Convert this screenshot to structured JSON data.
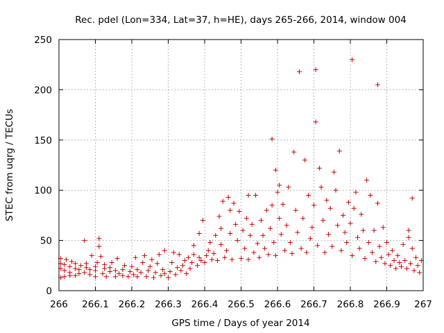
{
  "chart_data": {
    "type": "scatter",
    "title": "Rec. pdel (Lon=334, Lat=37, h=HE), days 265-266, 2014, window 004",
    "xlabel": "GPS time / Days of year 2014",
    "ylabel": "STEC from uqrg / TECUs",
    "xlim": [
      266,
      267
    ],
    "ylim": [
      0,
      250
    ],
    "xticks": [
      "266",
      "266.1",
      "266.2",
      "266.3",
      "266.4",
      "266.5",
      "266.6",
      "266.7",
      "266.8",
      "266.9",
      "267"
    ],
    "yticks": [
      "0",
      "50",
      "100",
      "150",
      "200",
      "250"
    ],
    "grid": true,
    "marker": "+",
    "series": [
      {
        "name": "STEC",
        "color": "#cc0000",
        "points": [
          [
            266.005,
            13
          ],
          [
            266.005,
            22
          ],
          [
            266.005,
            27
          ],
          [
            266.005,
            32
          ],
          [
            266.015,
            14
          ],
          [
            266.015,
            20
          ],
          [
            266.015,
            26
          ],
          [
            266.02,
            31
          ],
          [
            266.03,
            15
          ],
          [
            266.03,
            18
          ],
          [
            266.03,
            24
          ],
          [
            266.035,
            29
          ],
          [
            266.045,
            15
          ],
          [
            266.045,
            22
          ],
          [
            266.045,
            27
          ],
          [
            266.055,
            17
          ],
          [
            266.055,
            21
          ],
          [
            266.06,
            25
          ],
          [
            266.07,
            50
          ],
          [
            266.07,
            18
          ],
          [
            266.075,
            23
          ],
          [
            266.075,
            27
          ],
          [
            266.085,
            16
          ],
          [
            266.085,
            21
          ],
          [
            266.09,
            35
          ],
          [
            266.1,
            14
          ],
          [
            266.1,
            20
          ],
          [
            266.1,
            24
          ],
          [
            266.105,
            28
          ],
          [
            266.11,
            52
          ],
          [
            266.11,
            44
          ],
          [
            266.115,
            34
          ],
          [
            266.12,
            17
          ],
          [
            266.125,
            22
          ],
          [
            266.125,
            26
          ],
          [
            266.13,
            14
          ],
          [
            266.14,
            19
          ],
          [
            266.14,
            23
          ],
          [
            266.145,
            28
          ],
          [
            266.155,
            14
          ],
          [
            266.155,
            20
          ],
          [
            266.16,
            32
          ],
          [
            266.165,
            17
          ],
          [
            266.175,
            15
          ],
          [
            266.175,
            21
          ],
          [
            266.18,
            25
          ],
          [
            266.19,
            14
          ],
          [
            266.195,
            19
          ],
          [
            266.2,
            24
          ],
          [
            266.205,
            16
          ],
          [
            266.21,
            33
          ],
          [
            266.215,
            14
          ],
          [
            266.215,
            21
          ],
          [
            266.225,
            18
          ],
          [
            266.23,
            28
          ],
          [
            266.235,
            35
          ],
          [
            266.24,
            14
          ],
          [
            266.245,
            20
          ],
          [
            266.25,
            24
          ],
          [
            266.255,
            31
          ],
          [
            266.26,
            13
          ],
          [
            266.265,
            18
          ],
          [
            266.27,
            27
          ],
          [
            266.275,
            36
          ],
          [
            266.28,
            15
          ],
          [
            266.285,
            21
          ],
          [
            266.29,
            40
          ],
          [
            266.29,
            17
          ],
          [
            266.3,
            13
          ],
          [
            266.305,
            19
          ],
          [
            266.31,
            28
          ],
          [
            266.315,
            38
          ],
          [
            266.32,
            16
          ],
          [
            266.325,
            23
          ],
          [
            266.33,
            36
          ],
          [
            266.335,
            20
          ],
          [
            266.34,
            25
          ],
          [
            266.345,
            30
          ],
          [
            266.35,
            17
          ],
          [
            266.355,
            33
          ],
          [
            266.36,
            22
          ],
          [
            266.365,
            28
          ],
          [
            266.37,
            45
          ],
          [
            266.37,
            36
          ],
          [
            266.38,
            25
          ],
          [
            266.385,
            57
          ],
          [
            266.385,
            33
          ],
          [
            266.39,
            30
          ],
          [
            266.395,
            70
          ],
          [
            266.4,
            28
          ],
          [
            266.405,
            35
          ],
          [
            266.41,
            40
          ],
          [
            266.415,
            48
          ],
          [
            266.42,
            31
          ],
          [
            266.425,
            37
          ],
          [
            266.43,
            55
          ],
          [
            266.435,
            30
          ],
          [
            266.44,
            74
          ],
          [
            266.445,
            62
          ],
          [
            266.445,
            46
          ],
          [
            266.45,
            89
          ],
          [
            266.455,
            33
          ],
          [
            266.46,
            40
          ],
          [
            266.465,
            93
          ],
          [
            266.47,
            57
          ],
          [
            266.47,
            80
          ],
          [
            266.475,
            31
          ],
          [
            266.48,
            87
          ],
          [
            266.485,
            66
          ],
          [
            266.49,
            50
          ],
          [
            266.495,
            79
          ],
          [
            266.5,
            32
          ],
          [
            266.505,
            60
          ],
          [
            266.51,
            42
          ],
          [
            266.515,
            72
          ],
          [
            266.52,
            95
          ],
          [
            266.52,
            31
          ],
          [
            266.525,
            55
          ],
          [
            266.53,
            66
          ],
          [
            266.535,
            38
          ],
          [
            266.54,
            95
          ],
          [
            266.545,
            47
          ],
          [
            266.55,
            33
          ],
          [
            266.555,
            70
          ],
          [
            266.56,
            55
          ],
          [
            266.565,
            42
          ],
          [
            266.57,
            80
          ],
          [
            266.575,
            36
          ],
          [
            266.58,
            62
          ],
          [
            266.585,
            151
          ],
          [
            266.585,
            85
          ],
          [
            266.59,
            48
          ],
          [
            266.595,
            120
          ],
          [
            266.595,
            35
          ],
          [
            266.6,
            98
          ],
          [
            266.605,
            72
          ],
          [
            266.605,
            105
          ],
          [
            266.61,
            56
          ],
          [
            266.615,
            86
          ],
          [
            266.62,
            40
          ],
          [
            266.625,
            65
          ],
          [
            266.63,
            103
          ],
          [
            266.635,
            48
          ],
          [
            266.64,
            37
          ],
          [
            266.645,
            138
          ],
          [
            266.65,
            80
          ],
          [
            266.655,
            58
          ],
          [
            266.66,
            218
          ],
          [
            266.665,
            42
          ],
          [
            266.67,
            72
          ],
          [
            266.675,
            130
          ],
          [
            266.68,
            38
          ],
          [
            266.685,
            95
          ],
          [
            266.69,
            52
          ],
          [
            266.695,
            63
          ],
          [
            266.7,
            85
          ],
          [
            266.705,
            220
          ],
          [
            266.705,
            168
          ],
          [
            266.71,
            45
          ],
          [
            266.715,
            122
          ],
          [
            266.72,
            103
          ],
          [
            266.725,
            70
          ],
          [
            266.73,
            38
          ],
          [
            266.735,
            90
          ],
          [
            266.74,
            56
          ],
          [
            266.745,
            82
          ],
          [
            266.75,
            44
          ],
          [
            266.755,
            118
          ],
          [
            266.76,
            100
          ],
          [
            266.765,
            65
          ],
          [
            266.77,
            139
          ],
          [
            266.775,
            40
          ],
          [
            266.78,
            75
          ],
          [
            266.785,
            58
          ],
          [
            266.79,
            48
          ],
          [
            266.795,
            88
          ],
          [
            266.8,
            67
          ],
          [
            266.805,
            230
          ],
          [
            266.805,
            35
          ],
          [
            266.81,
            82
          ],
          [
            266.815,
            98
          ],
          [
            266.82,
            53
          ],
          [
            266.825,
            42
          ],
          [
            266.83,
            76
          ],
          [
            266.835,
            60
          ],
          [
            266.84,
            32
          ],
          [
            266.845,
            110
          ],
          [
            266.85,
            48
          ],
          [
            266.855,
            95
          ],
          [
            266.86,
            38
          ],
          [
            266.865,
            60
          ],
          [
            266.87,
            29
          ],
          [
            266.875,
            205
          ],
          [
            266.875,
            87
          ],
          [
            266.88,
            44
          ],
          [
            266.885,
            33
          ],
          [
            266.89,
            63
          ],
          [
            266.895,
            27
          ],
          [
            266.9,
            48
          ],
          [
            266.905,
            36
          ],
          [
            266.91,
            25
          ],
          [
            266.915,
            40
          ],
          [
            266.92,
            30
          ],
          [
            266.925,
            22
          ],
          [
            266.93,
            35
          ],
          [
            266.935,
            28
          ],
          [
            266.94,
            24
          ],
          [
            266.945,
            46
          ],
          [
            266.95,
            30
          ],
          [
            266.955,
            22
          ],
          [
            266.96,
            60
          ],
          [
            266.96,
            53
          ],
          [
            266.965,
            27
          ],
          [
            266.97,
            92
          ],
          [
            266.97,
            42
          ],
          [
            266.975,
            20
          ],
          [
            266.98,
            33
          ],
          [
            266.985,
            25
          ],
          [
            266.99,
            18
          ],
          [
            266.995,
            30
          ]
        ]
      }
    ]
  }
}
